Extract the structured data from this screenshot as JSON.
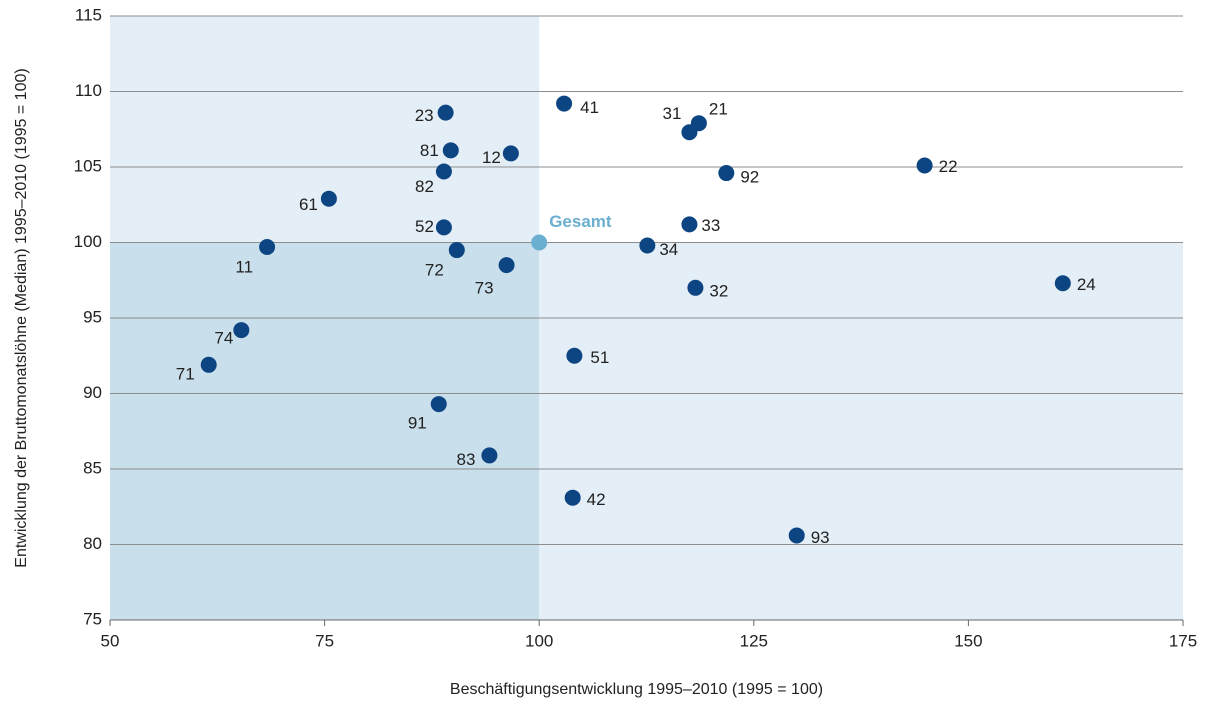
{
  "chart_data": {
    "type": "scatter",
    "x_label": "Beschäftigungsentwicklung 1995–2010 (1995 = 100)",
    "y_label": "Entwicklung der Bruttomonatslöhne (Median) 1995–2010 (1995 = 100)",
    "xlim": [
      50,
      175
    ],
    "xticks": [
      50,
      75,
      100,
      125,
      150,
      175
    ],
    "ylim": [
      75,
      115
    ],
    "yticks": [
      75,
      80,
      85,
      90,
      95,
      100,
      105,
      110,
      115
    ],
    "grid": true,
    "series": [
      {
        "name": "Gesamt",
        "color": "#6aaed0",
        "x": [
          100
        ],
        "values": [
          100
        ]
      },
      {
        "color": "#0d4583",
        "labels": [
          "23",
          "41",
          "31",
          "21",
          "81",
          "12",
          "92",
          "22",
          "82",
          "61",
          "52",
          "33",
          "11",
          "34",
          "72",
          "73",
          "24",
          "32",
          "74",
          "51",
          "71",
          "91",
          "83",
          "42",
          "93"
        ],
        "x": [
          89.1,
          102.9,
          117.5,
          118.6,
          89.7,
          96.7,
          121.8,
          144.9,
          88.9,
          75.5,
          88.9,
          117.5,
          68.3,
          112.6,
          90.4,
          96.2,
          161.0,
          118.2,
          65.3,
          104.1,
          61.5,
          88.3,
          94.2,
          103.9,
          130.0
        ],
        "values": [
          108.6,
          109.2,
          107.3,
          107.9,
          106.1,
          105.9,
          104.6,
          105.1,
          104.7,
          102.9,
          101.0,
          101.2,
          99.7,
          99.8,
          99.5,
          98.5,
          97.3,
          97.0,
          94.2,
          92.5,
          91.9,
          89.3,
          85.9,
          83.1,
          80.6
        ]
      }
    ]
  }
}
